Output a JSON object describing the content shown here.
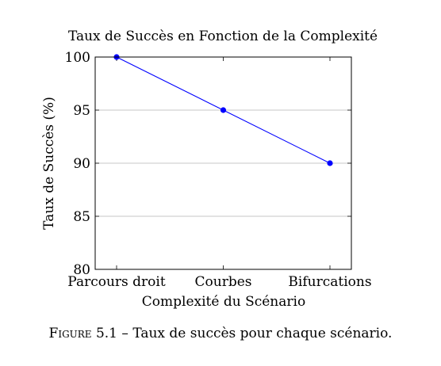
{
  "chart_data": {
    "type": "line",
    "title": "Taux de Succès en Fonction de la Complexité",
    "xlabel": "Complexité du Scénario",
    "ylabel": "Taux de Succès (%)",
    "categories": [
      "Parcours droit",
      "Courbes",
      "Bifurcations"
    ],
    "series": [
      {
        "values": [
          100,
          95,
          90
        ],
        "color": "#0000ff"
      }
    ],
    "ylim": [
      80,
      100
    ],
    "yticks": [
      80,
      85,
      90,
      95,
      100
    ],
    "grid": "horizontal",
    "legend": "none"
  },
  "caption": {
    "label": "Figure 5.1",
    "separator": "–",
    "text": "Taux de succès pour chaque scénario."
  }
}
